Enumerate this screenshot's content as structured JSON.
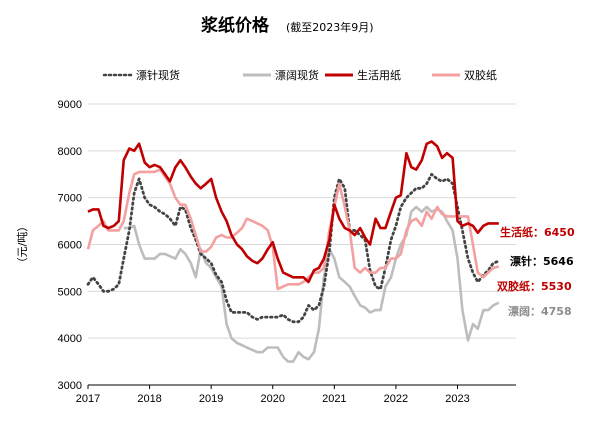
{
  "chart_data": {
    "type": "line",
    "title": "浆纸价格",
    "subtitle": "(截至2023年9月)",
    "ylabel": "（元/吨）",
    "xlabel": "",
    "ylim": [
      3000,
      9000
    ],
    "yticks": [
      3000,
      4000,
      5000,
      6000,
      7000,
      8000,
      9000
    ],
    "xlim": [
      2017.0,
      2023.95
    ],
    "xticks": [
      {
        "value": 2017,
        "label": "2017"
      },
      {
        "value": 2018,
        "label": "2018"
      },
      {
        "value": 2019,
        "label": "2019"
      },
      {
        "value": 2020,
        "label": "2020"
      },
      {
        "value": 2021,
        "label": "2021"
      },
      {
        "value": 2022,
        "label": "2022"
      },
      {
        "value": 2023,
        "label": "2023"
      }
    ],
    "grid": "horizontal",
    "legend_position": "top",
    "series": [
      {
        "name": "漂针现货",
        "color": "#444444",
        "style": "dotted",
        "end_label": "漂针：5646",
        "end_label_color": "#000000",
        "x": [
          2017.0,
          2017.08,
          2017.17,
          2017.25,
          2017.33,
          2017.42,
          2017.5,
          2017.58,
          2017.67,
          2017.75,
          2017.83,
          2017.92,
          2018.0,
          2018.08,
          2018.17,
          2018.25,
          2018.33,
          2018.42,
          2018.5,
          2018.58,
          2018.67,
          2018.75,
          2018.83,
          2018.92,
          2019.0,
          2019.08,
          2019.17,
          2019.25,
          2019.33,
          2019.42,
          2019.5,
          2019.58,
          2019.67,
          2019.75,
          2019.83,
          2019.92,
          2020.0,
          2020.08,
          2020.17,
          2020.25,
          2020.33,
          2020.42,
          2020.5,
          2020.58,
          2020.67,
          2020.75,
          2020.83,
          2020.92,
          2021.0,
          2021.08,
          2021.17,
          2021.25,
          2021.33,
          2021.42,
          2021.5,
          2021.58,
          2021.67,
          2021.75,
          2021.83,
          2021.92,
          2022.0,
          2022.08,
          2022.17,
          2022.25,
          2022.33,
          2022.42,
          2022.5,
          2022.58,
          2022.67,
          2022.75,
          2022.83,
          2022.92,
          2023.0,
          2023.08,
          2023.17,
          2023.25,
          2023.33,
          2023.42,
          2023.5,
          2023.58,
          2023.67
        ],
        "y": [
          5150,
          5300,
          5150,
          5000,
          5000,
          5050,
          5150,
          5700,
          6300,
          7100,
          7400,
          7000,
          6850,
          6800,
          6700,
          6650,
          6550,
          6400,
          6800,
          6750,
          6350,
          6100,
          5800,
          5700,
          5600,
          5350,
          5200,
          4800,
          4550,
          4550,
          4550,
          4550,
          4450,
          4400,
          4450,
          4450,
          4450,
          4450,
          4500,
          4400,
          4350,
          4350,
          4450,
          4700,
          4600,
          4700,
          5100,
          5850,
          7000,
          7400,
          7200,
          6300,
          6300,
          6200,
          6100,
          5450,
          5100,
          5050,
          5500,
          6100,
          6400,
          6800,
          7000,
          7100,
          7200,
          7200,
          7300,
          7500,
          7400,
          7350,
          7400,
          7300,
          6800,
          6300,
          5700,
          5400,
          5200,
          5350,
          5450,
          5600,
          5646
        ]
      },
      {
        "name": "漂阔现货",
        "color": "#bdbdbd",
        "style": "solid",
        "end_label": "漂阔：4758",
        "end_label_color": "#8c8c8c",
        "x": [
          2017.58,
          2017.67,
          2017.75,
          2017.83,
          2017.92,
          2018.0,
          2018.08,
          2018.17,
          2018.25,
          2018.33,
          2018.42,
          2018.5,
          2018.58,
          2018.67,
          2018.75,
          2018.83,
          2018.92,
          2019.0,
          2019.08,
          2019.17,
          2019.25,
          2019.33,
          2019.42,
          2019.5,
          2019.58,
          2019.67,
          2019.75,
          2019.83,
          2019.92,
          2020.0,
          2020.08,
          2020.17,
          2020.25,
          2020.33,
          2020.42,
          2020.5,
          2020.58,
          2020.67,
          2020.75,
          2020.83,
          2020.92,
          2021.0,
          2021.08,
          2021.17,
          2021.25,
          2021.33,
          2021.42,
          2021.5,
          2021.58,
          2021.67,
          2021.75,
          2021.83,
          2021.92,
          2022.0,
          2022.08,
          2022.17,
          2022.25,
          2022.33,
          2022.42,
          2022.5,
          2022.58,
          2022.67,
          2022.75,
          2022.83,
          2022.92,
          2023.0,
          2023.08,
          2023.17,
          2023.25,
          2023.33,
          2023.42,
          2023.5,
          2023.58,
          2023.67
        ],
        "y": [
          6350,
          6350,
          6400,
          6000,
          5700,
          5700,
          5700,
          5800,
          5800,
          5750,
          5700,
          5900,
          5800,
          5600,
          5300,
          5900,
          5600,
          5500,
          5300,
          5100,
          4300,
          4000,
          3900,
          3850,
          3800,
          3750,
          3700,
          3700,
          3800,
          3800,
          3800,
          3600,
          3500,
          3500,
          3700,
          3600,
          3550,
          3700,
          4200,
          5300,
          5900,
          5700,
          5300,
          5200,
          5100,
          4900,
          4700,
          4650,
          4550,
          4600,
          4600,
          5100,
          5300,
          5700,
          6000,
          6200,
          6700,
          6800,
          6700,
          6800,
          6700,
          6750,
          6700,
          6500,
          6300,
          5700,
          4600,
          3950,
          4300,
          4200,
          4600,
          4600,
          4700,
          4758
        ]
      },
      {
        "name": "生活用纸",
        "color": "#c00000",
        "style": "solid",
        "end_label": "生活纸：6450",
        "end_label_color": "#c00000",
        "x": [
          2017.0,
          2017.08,
          2017.17,
          2017.25,
          2017.33,
          2017.42,
          2017.5,
          2017.58,
          2017.67,
          2017.75,
          2017.83,
          2017.92,
          2018.0,
          2018.08,
          2018.17,
          2018.25,
          2018.33,
          2018.42,
          2018.5,
          2018.58,
          2018.67,
          2018.75,
          2018.83,
          2018.92,
          2019.0,
          2019.08,
          2019.17,
          2019.25,
          2019.33,
          2019.42,
          2019.5,
          2019.58,
          2019.67,
          2019.75,
          2019.83,
          2019.92,
          2020.0,
          2020.08,
          2020.17,
          2020.25,
          2020.33,
          2020.42,
          2020.5,
          2020.58,
          2020.67,
          2020.75,
          2020.83,
          2020.92,
          2021.0,
          2021.08,
          2021.17,
          2021.25,
          2021.33,
          2021.42,
          2021.5,
          2021.58,
          2021.67,
          2021.75,
          2021.83,
          2021.92,
          2022.0,
          2022.08,
          2022.17,
          2022.25,
          2022.33,
          2022.42,
          2022.5,
          2022.58,
          2022.67,
          2022.75,
          2022.83,
          2022.92,
          2023.0,
          2023.08,
          2023.17,
          2023.25,
          2023.33,
          2023.42,
          2023.5,
          2023.58,
          2023.67
        ],
        "y": [
          6700,
          6750,
          6750,
          6400,
          6350,
          6400,
          6500,
          7800,
          8050,
          8000,
          8150,
          7750,
          7650,
          7700,
          7650,
          7500,
          7350,
          7650,
          7800,
          7650,
          7450,
          7300,
          7200,
          7300,
          7400,
          7000,
          6700,
          6500,
          6200,
          6000,
          5900,
          5750,
          5650,
          5600,
          5700,
          5900,
          6050,
          5700,
          5400,
          5350,
          5300,
          5300,
          5300,
          5200,
          5450,
          5500,
          5700,
          6100,
          6850,
          6550,
          6350,
          6300,
          6200,
          6350,
          6150,
          6000,
          6550,
          6350,
          6350,
          6700,
          7000,
          7050,
          7950,
          7650,
          7600,
          7800,
          8150,
          8200,
          8100,
          7850,
          7950,
          7850,
          6500,
          6400,
          6450,
          6400,
          6250,
          6400,
          6450,
          6450,
          6450
        ]
      },
      {
        "name": "双胶纸",
        "color": "#f4a0a0",
        "style": "solid",
        "end_label": "双胶纸：5530",
        "end_label_color": "#c00000",
        "x": [
          2017.0,
          2017.08,
          2017.17,
          2017.25,
          2017.33,
          2017.42,
          2017.5,
          2017.58,
          2017.67,
          2017.75,
          2017.83,
          2017.92,
          2018.0,
          2018.08,
          2018.17,
          2018.25,
          2018.33,
          2018.42,
          2018.5,
          2018.58,
          2018.67,
          2018.75,
          2018.83,
          2018.92,
          2019.0,
          2019.08,
          2019.17,
          2019.25,
          2019.33,
          2019.42,
          2019.5,
          2019.58,
          2019.67,
          2019.75,
          2019.83,
          2019.92,
          2020.0,
          2020.08,
          2020.17,
          2020.25,
          2020.33,
          2020.42,
          2020.5,
          2020.58,
          2020.67,
          2020.75,
          2020.83,
          2020.92,
          2021.0,
          2021.08,
          2021.17,
          2021.25,
          2021.33,
          2021.42,
          2021.5,
          2021.58,
          2021.67,
          2021.75,
          2021.83,
          2021.92,
          2022.0,
          2022.08,
          2022.17,
          2022.25,
          2022.33,
          2022.42,
          2022.5,
          2022.58,
          2022.67,
          2022.75,
          2022.83,
          2022.92,
          2023.0,
          2023.08,
          2023.17,
          2023.25,
          2023.33,
          2023.42,
          2023.5,
          2023.58,
          2023.67
        ],
        "y": [
          5900,
          6300,
          6400,
          6500,
          6300,
          6300,
          6300,
          6500,
          7100,
          7500,
          7550,
          7550,
          7550,
          7550,
          7600,
          7450,
          7300,
          7000,
          6850,
          6850,
          6550,
          6200,
          5850,
          5850,
          5950,
          6150,
          6200,
          6150,
          6150,
          6250,
          6350,
          6550,
          6500,
          6450,
          6400,
          6300,
          5950,
          5050,
          5100,
          5150,
          5150,
          5150,
          5200,
          5300,
          5400,
          5400,
          5500,
          6300,
          6800,
          7300,
          6800,
          6300,
          5500,
          5400,
          5500,
          5400,
          5400,
          5500,
          5500,
          5700,
          5700,
          5800,
          6300,
          6500,
          6550,
          6400,
          6700,
          6550,
          6800,
          6650,
          6600,
          6600,
          6600,
          6600,
          6600,
          6000,
          5400,
          5300,
          5400,
          5500,
          5530
        ]
      }
    ]
  }
}
